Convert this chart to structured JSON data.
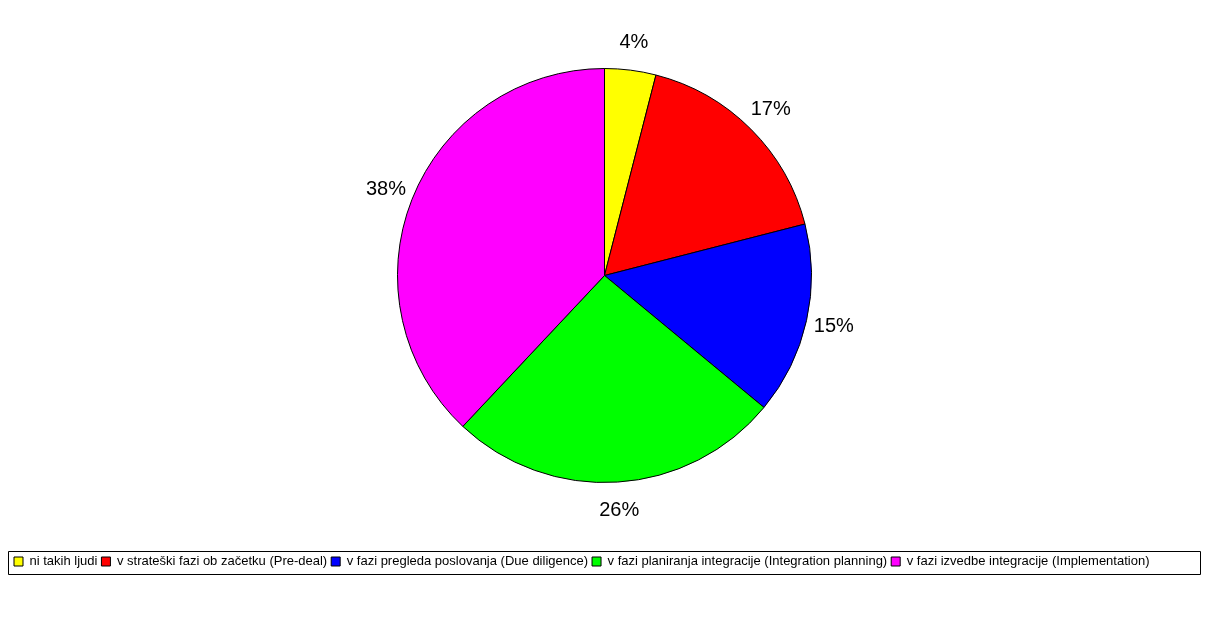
{
  "chart_data": {
    "type": "pie",
    "categories": [
      "ni takih ljudi",
      "v strateški fazi ob začetku (Pre-deal)",
      "v fazi pregleda poslovanja (Due diligence)",
      "v fazi planiranja integracije (Integration planning)",
      "v fazi izvedbe integracije (Implementation)"
    ],
    "values": [
      4,
      17,
      15,
      26,
      38
    ],
    "value_labels": [
      "4%",
      "17%",
      "15%",
      "26%",
      "38%"
    ],
    "colors": [
      "#ffff00",
      "#ff0000",
      "#0000ff",
      "#00ff00",
      "#ff00ff"
    ],
    "legend": "bottom"
  }
}
